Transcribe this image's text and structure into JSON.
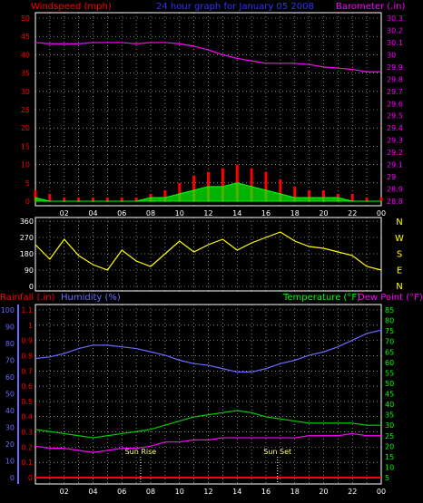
{
  "header": {
    "left_title": "Windspeed (mph)",
    "center_title": "24 hour graph for   January 05 2008",
    "right_title": "Barometer (.in)"
  },
  "colors": {
    "background": "#000000",
    "grid": "#d8d8d8",
    "wind": "#ff0000",
    "gust": "#ffffff",
    "avg_wind": "#00ff00",
    "barometer": "#ff00ff",
    "direction": "#ffff00",
    "humidity": "#6b6bff",
    "temperature": "#00cc00",
    "dewpoint": "#ff00ff",
    "rainfall": "#ff0000",
    "axis_left": "#ff0000",
    "axis_right": "#ff00ff",
    "time_axis": "#ffffff"
  },
  "time_ticks": [
    "02",
    "04",
    "06",
    "08",
    "10",
    "12",
    "14",
    "16",
    "18",
    "20",
    "22",
    "00"
  ],
  "chart_data": [
    {
      "type": "line",
      "id": "wind-barometer",
      "left_axis_label": "Windspeed (mph)",
      "right_axis_label": "Barometer (.in)",
      "xlabel": "",
      "x_ticks": [
        "02",
        "04",
        "06",
        "08",
        "10",
        "12",
        "14",
        "16",
        "18",
        "20",
        "22",
        "00"
      ],
      "xlim": [
        0,
        24
      ],
      "left_ylim": [
        0,
        50
      ],
      "left_ticks": [
        0,
        5,
        10,
        15,
        20,
        25,
        30,
        35,
        40,
        45,
        50
      ],
      "right_ylim": [
        28.8,
        30.3
      ],
      "right_ticks": [
        "28.8",
        "28.9",
        "29",
        "29.1",
        "29.2",
        "29.3",
        "29.4",
        "29.5",
        "29.6",
        "29.7",
        "29.8",
        "29.9",
        "30",
        "30.1",
        "30.2",
        "30.3"
      ],
      "grid": true,
      "series": [
        {
          "axis": "right",
          "color": "#ff00ff",
          "x": [
            0,
            1,
            2,
            3,
            4,
            5,
            6,
            7,
            8,
            9,
            10,
            11,
            12,
            13,
            14,
            15,
            16,
            17,
            18,
            19,
            20,
            21,
            22,
            23,
            24
          ],
          "values": [
            30.1,
            30.09,
            30.09,
            30.09,
            30.1,
            30.1,
            30.1,
            30.09,
            30.1,
            30.1,
            30.09,
            30.07,
            30.04,
            30.0,
            29.97,
            29.95,
            29.93,
            29.93,
            29.93,
            29.92,
            29.9,
            29.89,
            29.88,
            29.86,
            29.86
          ]
        },
        {
          "axis": "left",
          "color": "#ff0000",
          "style": "impulse",
          "x": [
            0,
            1,
            2,
            3,
            4,
            5,
            6,
            7,
            8,
            9,
            10,
            11,
            12,
            13,
            14,
            15,
            16,
            17,
            18,
            19,
            20,
            21,
            22,
            23,
            24
          ],
          "values": [
            3,
            2,
            1,
            1,
            1,
            1,
            1,
            1,
            2,
            3,
            5,
            7,
            8,
            9,
            10,
            9,
            8,
            6,
            4,
            3,
            3,
            2,
            2,
            1,
            1
          ]
        },
        {
          "axis": "left",
          "color": "#00ff00",
          "style": "area",
          "x": [
            0,
            1,
            2,
            3,
            4,
            5,
            6,
            7,
            8,
            9,
            10,
            11,
            12,
            13,
            14,
            15,
            16,
            17,
            18,
            19,
            20,
            21,
            22,
            23,
            24
          ],
          "values": [
            1,
            0,
            0,
            0,
            0,
            0,
            0,
            0,
            1,
            1,
            2,
            3,
            4,
            4,
            5,
            4,
            3,
            2,
            1,
            1,
            1,
            1,
            0,
            0,
            0
          ]
        }
      ]
    },
    {
      "type": "line",
      "id": "wind-direction",
      "right_axis_label": "N W S E N",
      "compass": [
        "N",
        "W",
        "S",
        "E",
        "N"
      ],
      "xlim": [
        0,
        24
      ],
      "ylim": [
        0,
        360
      ],
      "y_ticks": [
        0,
        90,
        180,
        270,
        360
      ],
      "x_ticks": [
        "02",
        "04",
        "06",
        "08",
        "10",
        "12",
        "14",
        "16",
        "18",
        "20",
        "22",
        "00"
      ],
      "grid": true,
      "series": [
        {
          "color": "#ffff00",
          "x": [
            0,
            1,
            2,
            3,
            4,
            5,
            6,
            7,
            8,
            9,
            10,
            11,
            12,
            13,
            14,
            15,
            16,
            17,
            18,
            19,
            20,
            21,
            22,
            23,
            24
          ],
          "values": [
            230,
            150,
            260,
            170,
            120,
            90,
            200,
            140,
            110,
            180,
            250,
            190,
            230,
            260,
            200,
            240,
            270,
            300,
            250,
            220,
            210,
            190,
            170,
            110,
            90
          ]
        }
      ]
    },
    {
      "type": "line",
      "id": "humidity-temperature",
      "left_axis_label": "Rainfall (.in)",
      "left_axis_label_2": "Humidity (%)",
      "right_axis_label": "Temperature (°F)",
      "right_axis_label_2": "Dew Point (°F)",
      "xlim": [
        0,
        24
      ],
      "humidity_ylim": [
        0,
        100
      ],
      "humidity_ticks": [
        0,
        10,
        20,
        30,
        40,
        50,
        60,
        70,
        80,
        90,
        100
      ],
      "rain_ylim": [
        0,
        1.1
      ],
      "rain_ticks": [
        "0",
        "0.1",
        "0.2",
        "0.3",
        "0.4",
        "0.5",
        "0.6",
        "0.7",
        "0.8",
        "0.9",
        "1",
        "1.1"
      ],
      "temp_ylim": [
        5,
        85
      ],
      "temp_ticks": [
        5,
        10,
        15,
        20,
        25,
        30,
        35,
        40,
        45,
        50,
        55,
        60,
        65,
        70,
        75,
        80,
        85
      ],
      "x_ticks": [
        "02",
        "04",
        "06",
        "08",
        "10",
        "12",
        "14",
        "16",
        "18",
        "20",
        "22",
        "00"
      ],
      "grid": true,
      "annotations": [
        {
          "x": 7.3,
          "label": "Sun Rise"
        },
        {
          "x": 16.8,
          "label": "Sun Set"
        }
      ],
      "series": [
        {
          "axis": "humidity",
          "color": "#6b6bff",
          "x": [
            0,
            1,
            2,
            3,
            4,
            5,
            6,
            7,
            8,
            9,
            10,
            11,
            12,
            13,
            14,
            15,
            16,
            17,
            18,
            19,
            20,
            21,
            22,
            23,
            24
          ],
          "values": [
            71,
            72,
            74,
            77,
            79,
            79,
            78,
            77,
            75,
            73,
            70,
            68,
            67,
            65,
            63,
            63,
            65,
            68,
            70,
            73,
            75,
            78,
            82,
            86,
            88
          ]
        },
        {
          "axis": "temp",
          "color": "#00cc00",
          "x": [
            0,
            1,
            2,
            3,
            4,
            5,
            6,
            7,
            8,
            9,
            10,
            11,
            12,
            13,
            14,
            15,
            16,
            17,
            18,
            19,
            20,
            21,
            22,
            23,
            24
          ],
          "values": [
            28,
            27,
            26,
            25,
            24,
            25,
            26,
            27,
            28,
            30,
            32,
            34,
            35,
            36,
            37,
            36,
            34,
            33,
            32,
            31,
            31,
            31,
            31,
            30,
            30
          ]
        },
        {
          "axis": "temp",
          "color": "#ff00ff",
          "x": [
            0,
            1,
            2,
            3,
            4,
            5,
            6,
            7,
            8,
            9,
            10,
            11,
            12,
            13,
            14,
            15,
            16,
            17,
            18,
            19,
            20,
            21,
            22,
            23,
            24
          ],
          "values": [
            20,
            19,
            19,
            18,
            17,
            18,
            19,
            19,
            20,
            22,
            22,
            23,
            23,
            24,
            24,
            24,
            24,
            24,
            24,
            25,
            25,
            25,
            26,
            25,
            25
          ]
        },
        {
          "axis": "rain",
          "color": "#ff0000",
          "x": [
            0,
            24
          ],
          "values": [
            0,
            0
          ]
        }
      ]
    }
  ]
}
